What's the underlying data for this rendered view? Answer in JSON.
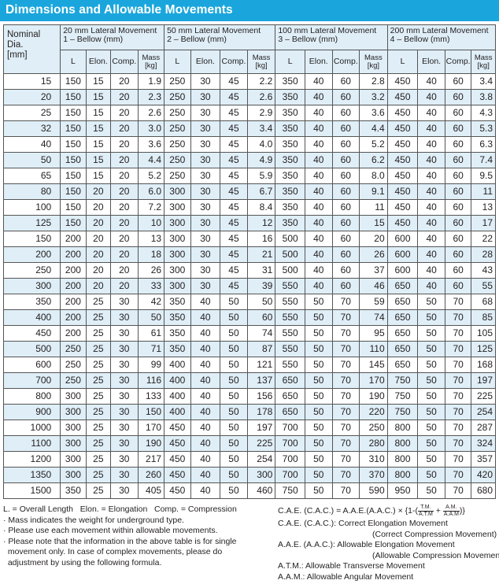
{
  "title": "Dimensions and Allowable Movements",
  "header": {
    "nominal_lines": [
      "Nominal",
      "Dia.",
      "[mm]"
    ],
    "groups": [
      {
        "line1": "20 mm Lateral Movement",
        "line2": "1 – Bellow (mm)"
      },
      {
        "line1": "50 mm Lateral Movement",
        "line2": "2 – Bellow (mm)"
      },
      {
        "line1": "100 mm Lateral Movement",
        "line2": "3 – Bellow (mm)"
      },
      {
        "line1": "200 mm Lateral Movement",
        "line2": "4 – Bellow (mm)"
      }
    ],
    "sub": [
      "L",
      "Elon.",
      "Comp."
    ],
    "mass_lines": [
      "Mass",
      "[kg]"
    ]
  },
  "rows": [
    [
      "15",
      "150",
      "15",
      "20",
      "1.9",
      "250",
      "30",
      "45",
      "2.2",
      "350",
      "40",
      "60",
      "2.8",
      "450",
      "40",
      "60",
      "3.4"
    ],
    [
      "20",
      "150",
      "15",
      "20",
      "2.3",
      "250",
      "30",
      "45",
      "2.6",
      "350",
      "40",
      "60",
      "3.2",
      "450",
      "40",
      "60",
      "3.8"
    ],
    [
      "25",
      "150",
      "15",
      "20",
      "2.6",
      "250",
      "30",
      "45",
      "2.9",
      "350",
      "40",
      "60",
      "3.6",
      "450",
      "40",
      "60",
      "4.3"
    ],
    [
      "32",
      "150",
      "15",
      "20",
      "3.0",
      "250",
      "30",
      "45",
      "3.4",
      "350",
      "40",
      "60",
      "4.4",
      "450",
      "40",
      "60",
      "5.3"
    ],
    [
      "40",
      "150",
      "15",
      "20",
      "3.6",
      "250",
      "30",
      "45",
      "4.0",
      "350",
      "40",
      "60",
      "5.2",
      "450",
      "40",
      "60",
      "6.3"
    ],
    [
      "50",
      "150",
      "15",
      "20",
      "4.4",
      "250",
      "30",
      "45",
      "4.9",
      "350",
      "40",
      "60",
      "6.2",
      "450",
      "40",
      "60",
      "7.4"
    ],
    [
      "65",
      "150",
      "15",
      "20",
      "5.2",
      "250",
      "30",
      "45",
      "5.9",
      "350",
      "40",
      "60",
      "8.0",
      "450",
      "40",
      "60",
      "9.5"
    ],
    [
      "80",
      "150",
      "20",
      "20",
      "6.0",
      "300",
      "30",
      "45",
      "6.7",
      "350",
      "40",
      "60",
      "9.1",
      "450",
      "40",
      "60",
      "11"
    ],
    [
      "100",
      "150",
      "20",
      "20",
      "7.2",
      "300",
      "30",
      "45",
      "8.4",
      "350",
      "40",
      "60",
      "11",
      "450",
      "40",
      "60",
      "13"
    ],
    [
      "125",
      "150",
      "20",
      "20",
      "10",
      "300",
      "30",
      "45",
      "12",
      "350",
      "40",
      "60",
      "15",
      "450",
      "40",
      "60",
      "17"
    ],
    [
      "150",
      "200",
      "20",
      "20",
      "13",
      "300",
      "30",
      "45",
      "16",
      "500",
      "40",
      "60",
      "20",
      "600",
      "40",
      "60",
      "22"
    ],
    [
      "200",
      "200",
      "20",
      "20",
      "18",
      "300",
      "30",
      "45",
      "21",
      "500",
      "40",
      "60",
      "26",
      "600",
      "40",
      "60",
      "28"
    ],
    [
      "250",
      "200",
      "20",
      "20",
      "26",
      "300",
      "30",
      "45",
      "31",
      "500",
      "40",
      "60",
      "37",
      "600",
      "40",
      "60",
      "43"
    ],
    [
      "300",
      "200",
      "20",
      "20",
      "33",
      "300",
      "30",
      "45",
      "39",
      "550",
      "40",
      "60",
      "46",
      "650",
      "40",
      "60",
      "55"
    ],
    [
      "350",
      "200",
      "25",
      "30",
      "42",
      "350",
      "40",
      "50",
      "50",
      "550",
      "50",
      "70",
      "59",
      "650",
      "50",
      "70",
      "68"
    ],
    [
      "400",
      "200",
      "25",
      "30",
      "50",
      "350",
      "40",
      "50",
      "60",
      "550",
      "50",
      "70",
      "74",
      "650",
      "50",
      "70",
      "85"
    ],
    [
      "450",
      "200",
      "25",
      "30",
      "61",
      "350",
      "40",
      "50",
      "74",
      "550",
      "50",
      "70",
      "95",
      "650",
      "50",
      "70",
      "105"
    ],
    [
      "500",
      "250",
      "25",
      "30",
      "71",
      "350",
      "40",
      "50",
      "87",
      "550",
      "50",
      "70",
      "110",
      "650",
      "50",
      "70",
      "125"
    ],
    [
      "600",
      "250",
      "25",
      "30",
      "99",
      "400",
      "40",
      "50",
      "121",
      "550",
      "50",
      "70",
      "145",
      "650",
      "50",
      "70",
      "168"
    ],
    [
      "700",
      "250",
      "25",
      "30",
      "116",
      "400",
      "40",
      "50",
      "137",
      "650",
      "50",
      "70",
      "170",
      "750",
      "50",
      "70",
      "197"
    ],
    [
      "800",
      "300",
      "25",
      "30",
      "133",
      "400",
      "40",
      "50",
      "156",
      "650",
      "50",
      "70",
      "190",
      "750",
      "50",
      "70",
      "225"
    ],
    [
      "900",
      "300",
      "25",
      "30",
      "150",
      "400",
      "40",
      "50",
      "178",
      "650",
      "50",
      "70",
      "220",
      "750",
      "50",
      "70",
      "254"
    ],
    [
      "1000",
      "300",
      "25",
      "30",
      "170",
      "450",
      "40",
      "50",
      "197",
      "700",
      "50",
      "70",
      "250",
      "800",
      "50",
      "70",
      "287"
    ],
    [
      "1100",
      "300",
      "25",
      "30",
      "190",
      "450",
      "40",
      "50",
      "225",
      "700",
      "50",
      "70",
      "280",
      "800",
      "50",
      "70",
      "324"
    ],
    [
      "1200",
      "300",
      "25",
      "30",
      "217",
      "450",
      "40",
      "50",
      "254",
      "700",
      "50",
      "70",
      "310",
      "800",
      "50",
      "70",
      "357"
    ],
    [
      "1350",
      "300",
      "25",
      "30",
      "260",
      "450",
      "40",
      "50",
      "300",
      "700",
      "50",
      "70",
      "370",
      "800",
      "50",
      "70",
      "420"
    ],
    [
      "1500",
      "350",
      "25",
      "30",
      "405",
      "450",
      "40",
      "50",
      "460",
      "750",
      "50",
      "70",
      "590",
      "950",
      "50",
      "70",
      "680"
    ]
  ],
  "notes_left": [
    "L. = Overall Length   Elon. = Elongation   Comp. = Compression",
    "· Mass indicates the weight for underground type.",
    "· Please use each movement within allowable movements.",
    "· Please note that the information in the above table is for single",
    "  movement only. In case of complex movements, please do",
    "  adjustment by using the following formula."
  ],
  "formula": {
    "lhs": "C.A.E. (C.A.C.) = A.A.E.(A.A.C.) × {1-(",
    "num1": "T.M.",
    "den1": "A.T.M",
    "plus": "+",
    "num2": "A.M.",
    "den2": "A.A.M",
    "close": ")}"
  },
  "notes_right": [
    {
      "text": "C.A.E. (C.A.C.): Correct Elongation Movement",
      "indent": false
    },
    {
      "text": "(Correct Compression Movement)",
      "indent": true
    },
    {
      "text": "A.A.E. (A.A.C.): Allowable Elongation Movement",
      "indent": false
    },
    {
      "text": "(Allowable Compression Movement)",
      "indent": true
    },
    {
      "text": "A.T.M.: Allowable Transverse Movement",
      "indent": false
    },
    {
      "text": "A.A.M.: Allowable Angular Movement",
      "indent": false
    }
  ],
  "colors": {
    "title_bar": "#1aa6dc",
    "header_fill": "#dfeef7",
    "stripe_fill": "#dfeef7"
  }
}
